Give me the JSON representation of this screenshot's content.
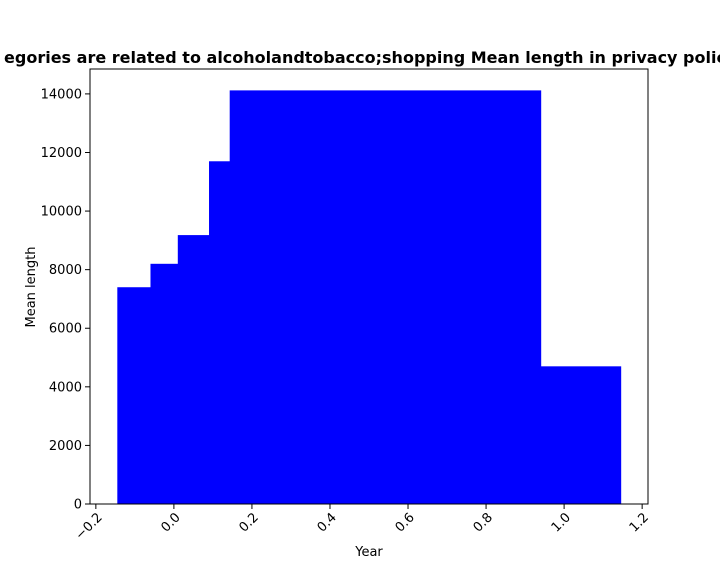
{
  "chart_data": {
    "type": "bar",
    "title": "egories are related to alcoholandtobacco;shopping Mean length in privacy polic",
    "xlabel": "Year",
    "ylabel": "Mean length",
    "xlim": [
      -0.215,
      1.215
    ],
    "ylim": [
      0,
      14850
    ],
    "x_ticks": [
      -0.2,
      0.0,
      0.2,
      0.4,
      0.6,
      0.8,
      1.0,
      1.2
    ],
    "x_tick_labels": [
      "−0.2",
      "0.0",
      "0.2",
      "0.4",
      "0.6",
      "0.8",
      "1.0",
      "1.2"
    ],
    "y_ticks": [
      0,
      2000,
      4000,
      6000,
      8000,
      10000,
      12000,
      14000
    ],
    "y_tick_labels": [
      "0",
      "2000",
      "4000",
      "6000",
      "8000",
      "10000",
      "12000",
      "14000"
    ],
    "bar_color": "#0000ff",
    "bars": [
      {
        "x0": -0.145,
        "x1": -0.06,
        "value": 7400
      },
      {
        "x0": -0.06,
        "x1": 0.01,
        "value": 8200
      },
      {
        "x0": 0.01,
        "x1": 0.09,
        "value": 9180
      },
      {
        "x0": 0.09,
        "x1": 0.143,
        "value": 11700
      },
      {
        "x0": 0.143,
        "x1": 0.94,
        "value": 14120
      },
      {
        "x0": 0.94,
        "x1": 1.145,
        "value": 4700
      }
    ],
    "grid": false,
    "legend": "none"
  }
}
